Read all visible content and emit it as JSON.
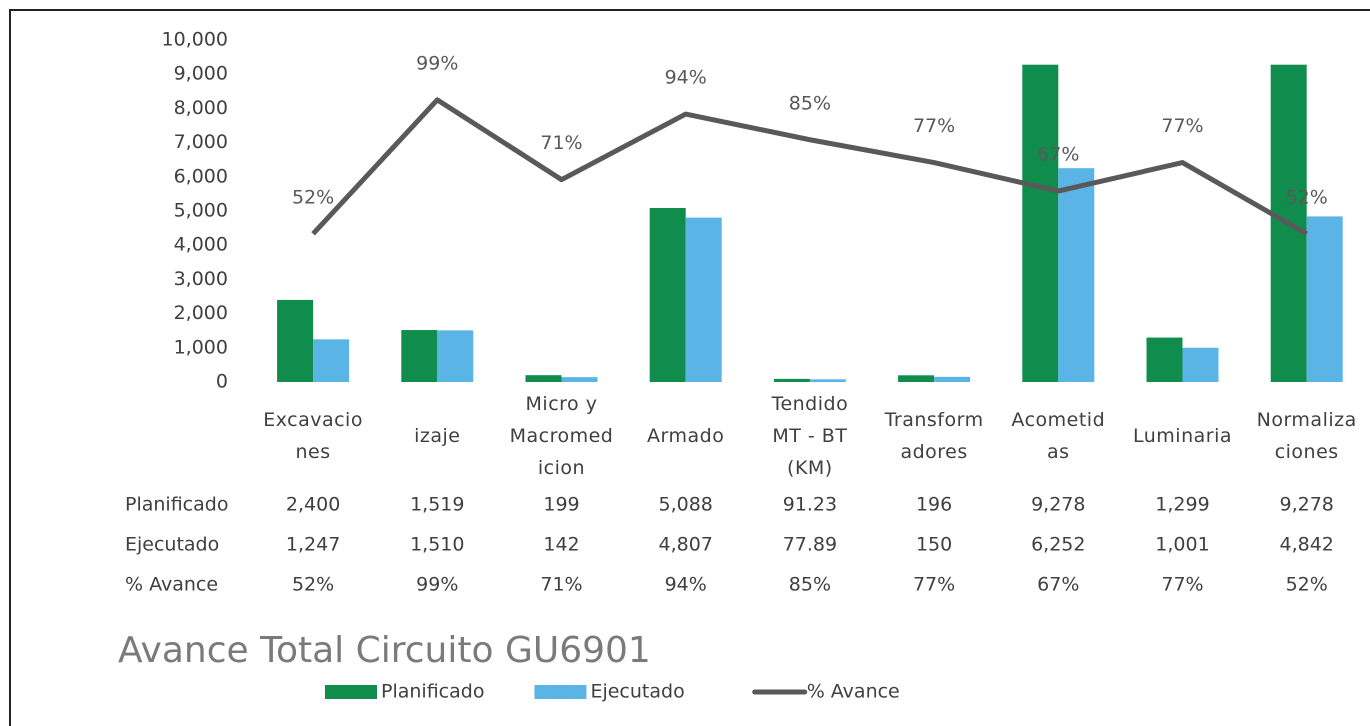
{
  "chart_data": {
    "type": "bar_line",
    "title": "Avance Total Circuito GU6901",
    "categories": [
      "Excavaciones",
      "izaje",
      "Micro y Macromedicion",
      "Armado",
      "Tendido MT - BT (KM)",
      "Transformadores",
      "Acometidas",
      "Luminaria",
      "Normalizaciones"
    ],
    "series": [
      {
        "name": "Planificado",
        "type": "bar",
        "color": "#108c4c",
        "values": [
          2400,
          1519,
          199,
          5088,
          91.23,
          196,
          9278,
          1299,
          9278
        ],
        "value_labels": [
          "2,400",
          "1,519",
          "199",
          "5,088",
          "91.23",
          "196",
          "9,278",
          "1,299",
          "9,278"
        ]
      },
      {
        "name": "Ejecutado",
        "type": "bar",
        "color": "#5ab4e6",
        "values": [
          1247,
          1510,
          142,
          4807,
          77.89,
          150,
          6252,
          1001,
          4842
        ],
        "value_labels": [
          "1,247",
          "1,510",
          "142",
          "4,807",
          "77.89",
          "150",
          "6,252",
          "1,001",
          "4,842"
        ]
      },
      {
        "name": "% Avance",
        "type": "line",
        "axis": "y2",
        "color": "#595959",
        "values": [
          52,
          99,
          71,
          94,
          85,
          77,
          67,
          77,
          52
        ],
        "value_labels": [
          "52%",
          "99%",
          "71%",
          "94%",
          "85%",
          "77%",
          "67%",
          "77%",
          "52%"
        ]
      }
    ],
    "ylim": [
      0,
      10000
    ],
    "yticks": [
      0,
      {
        "value": 1000,
        "label": "1,000"
      },
      {
        "value": 2000,
        "label": "2,000"
      },
      {
        "value": 3000,
        "label": "3,000"
      },
      {
        "value": 4000,
        "label": "4,000"
      },
      {
        "value": 5000,
        "label": "5,000"
      },
      {
        "value": 6000,
        "label": "6,000"
      },
      {
        "value": 7000,
        "label": "7,000"
      },
      {
        "value": 8000,
        "label": "8,000"
      },
      {
        "value": 9000,
        "label": "9,000"
      },
      {
        "value": 10000,
        "label": "10,000"
      }
    ],
    "y2lim": [
      0,
      120
    ],
    "grid": false,
    "legend": "bottom"
  }
}
